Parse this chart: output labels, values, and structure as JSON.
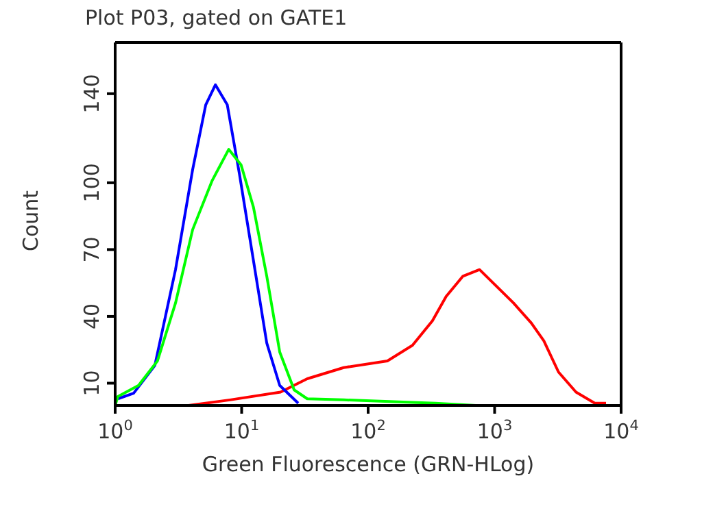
{
  "chart_data": {
    "type": "line",
    "title": "Plot P03, gated on GATE1",
    "xlabel": "Green Fluorescence (GRN-HLog)",
    "ylabel": "Count",
    "log": "x",
    "xlim": [
      1,
      10000
    ],
    "xticks": [
      {
        "value": 1,
        "label": "10$^{0}$"
      },
      {
        "value": 10,
        "label": "10$^{1}$"
      },
      {
        "value": 100,
        "label": "10$^{2}$"
      },
      {
        "value": 1000,
        "label": "10$^{3}$"
      },
      {
        "value": 10000,
        "label": "10$^{4}$"
      }
    ],
    "ylim": [
      0,
      163
    ],
    "yticks": [
      10,
      40,
      70,
      100,
      140
    ],
    "grid": false,
    "legend": false,
    "marker": "none",
    "line_style": "solid",
    "series": [
      {
        "color": "#ff0000",
        "x": [
          3.8,
          8.1,
          20.3,
          33,
          64,
          142,
          224,
          322,
          414,
          560,
          760,
          1410,
          1950,
          2450,
          3200,
          4400,
          6200,
          7600
        ],
        "values": [
          0,
          2.5,
          6,
          12,
          17,
          20,
          27,
          38,
          49,
          58,
          61,
          46,
          37,
          29,
          15,
          6,
          1,
          1
        ]
      },
      {
        "color": "#0000ff",
        "x": [
          1.05,
          1.4,
          2.06,
          3.0,
          4.1,
          5.2,
          6.2,
          7.7,
          9.6,
          12.4,
          15.8,
          20,
          28
        ],
        "values": [
          3,
          5.5,
          18,
          61,
          106,
          135,
          144,
          135,
          104,
          65,
          28,
          9,
          1
        ]
      },
      {
        "color": "#00ff00",
        "x": [
          1,
          1.05,
          1.53,
          2.16,
          3.0,
          4.1,
          5.85,
          7.9,
          9.9,
          12.4,
          15.8,
          20,
          26,
          33,
          64,
          340,
          710
        ],
        "values": [
          0,
          4,
          9,
          20,
          46,
          79,
          101,
          115,
          108,
          89,
          58,
          24,
          7,
          3,
          2.5,
          1,
          0
        ]
      }
    ]
  }
}
